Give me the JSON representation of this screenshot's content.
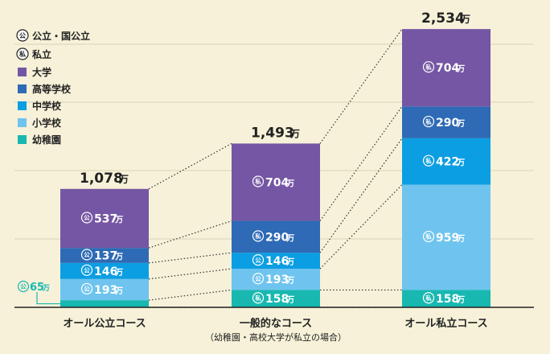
{
  "chart_data": {
    "type": "bar",
    "stacked": true,
    "unit": "万",
    "grid": true,
    "legend_placement": "top-left",
    "ylim": [
      0,
      2534
    ],
    "categories": [
      "オール公立コース",
      "一般的なコース",
      "オール私立コース"
    ],
    "category_notes": [
      "",
      "（幼稚園・高校大学が私立の場合）",
      ""
    ],
    "totals": [
      "1,078",
      "1,493",
      "2,534"
    ],
    "markers": {
      "public": "公",
      "private": "私"
    },
    "legend": {
      "types": [
        {
          "marker": "公",
          "label": "公立・国公立"
        },
        {
          "marker": "私",
          "label": "私立"
        }
      ]
    },
    "series": [
      {
        "name": "幼稚園",
        "color": "#18b8b0",
        "values": [
          65,
          158,
          158
        ],
        "labels": [
          "65",
          "158",
          "158"
        ],
        "types": [
          "公",
          "私",
          "私"
        ]
      },
      {
        "name": "小学校",
        "color": "#6ec4ee",
        "values": [
          193,
          193,
          959
        ],
        "labels": [
          "193",
          "193",
          "959"
        ],
        "types": [
          "公",
          "公",
          "私"
        ]
      },
      {
        "name": "中学校",
        "color": "#0c9ee2",
        "values": [
          146,
          146,
          422
        ],
        "labels": [
          "146",
          "146",
          "422"
        ],
        "types": [
          "公",
          "公",
          "私"
        ]
      },
      {
        "name": "高等学校",
        "color": "#2e6ab5",
        "values": [
          137,
          290,
          290
        ],
        "labels": [
          "137",
          "290",
          "290"
        ],
        "types": [
          "公",
          "私",
          "私"
        ]
      },
      {
        "name": "大学",
        "color": "#7556a4",
        "values": [
          537,
          704,
          704
        ],
        "labels": [
          "537",
          "704",
          "704"
        ],
        "types": [
          "公",
          "私",
          "私"
        ]
      }
    ]
  }
}
